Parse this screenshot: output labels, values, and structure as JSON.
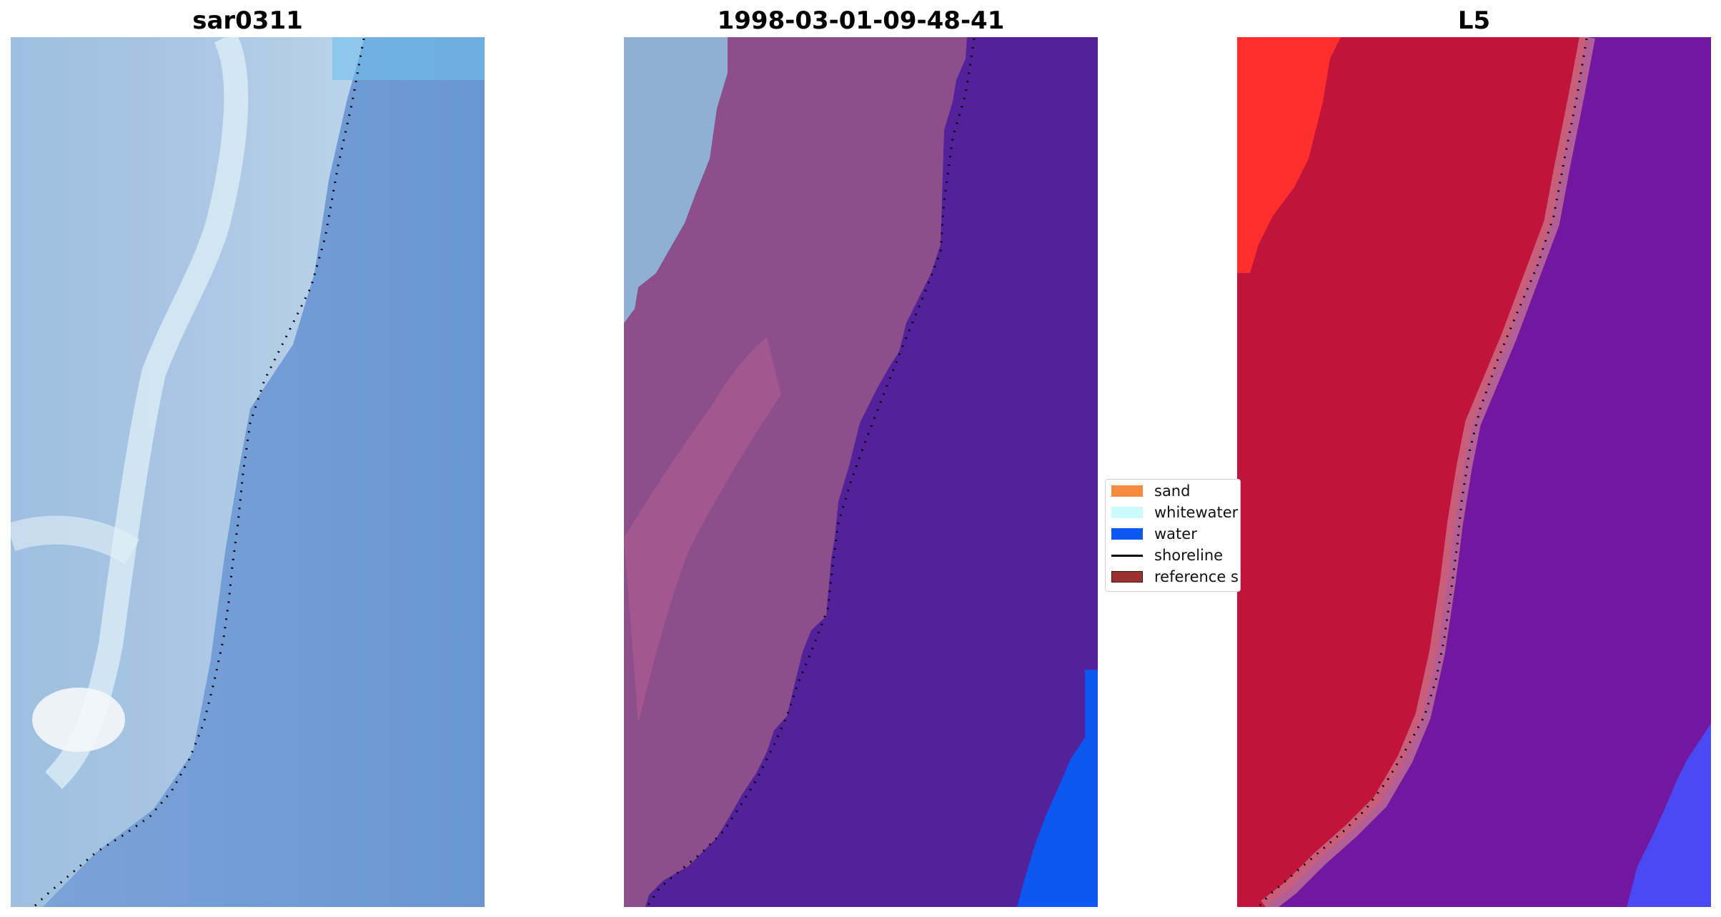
{
  "panels": [
    {
      "title": "sar0311"
    },
    {
      "title": "1998-03-01-09-48-41"
    },
    {
      "title": "L5"
    }
  ],
  "legend": {
    "items": [
      {
        "label": "sand",
        "color": "#f58b3e"
      },
      {
        "label": "whitewater",
        "color": "#c8fbf9"
      },
      {
        "label": "water",
        "color": "#0a57f2"
      },
      {
        "label": "shoreline",
        "color": "#000000"
      },
      {
        "label": "reference s",
        "color": "#9a3131"
      }
    ]
  },
  "colors": {
    "rgb_water": "#6a96d2",
    "rgb_land": "#a7c0df",
    "rgb_foam": "#dbeef4",
    "class_land": "#8c4f8c",
    "class_land_pink": "#b5608f",
    "class_sea": "#53219a",
    "class_whitewater_tint": "#8eb0d2",
    "class_water": "#0a57f2",
    "l5_red": "#c1143a",
    "l5_bright_red": "#ff2e2e",
    "l5_purple": "#7217a0",
    "l5_blue": "#4a49f2"
  }
}
